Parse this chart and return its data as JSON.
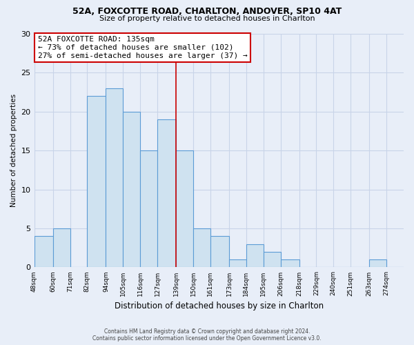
{
  "title1": "52A, FOXCOTTE ROAD, CHARLTON, ANDOVER, SP10 4AT",
  "title2": "Size of property relative to detached houses in Charlton",
  "xlabel": "Distribution of detached houses by size in Charlton",
  "ylabel": "Number of detached properties",
  "bin_labels": [
    "48sqm",
    "60sqm",
    "71sqm",
    "82sqm",
    "94sqm",
    "105sqm",
    "116sqm",
    "127sqm",
    "139sqm",
    "150sqm",
    "161sqm",
    "173sqm",
    "184sqm",
    "195sqm",
    "206sqm",
    "218sqm",
    "229sqm",
    "240sqm",
    "251sqm",
    "263sqm",
    "274sqm"
  ],
  "bin_edges": [
    48,
    60,
    71,
    82,
    94,
    105,
    116,
    127,
    139,
    150,
    161,
    173,
    184,
    195,
    206,
    218,
    229,
    240,
    251,
    263,
    274
  ],
  "counts": [
    4,
    5,
    0,
    22,
    23,
    20,
    15,
    19,
    15,
    5,
    4,
    1,
    3,
    2,
    1,
    0,
    0,
    0,
    0,
    1,
    0
  ],
  "bar_color": "#cfe2f0",
  "bar_edgecolor": "#5b9bd5",
  "vline_x": 139,
  "vline_color": "#cc0000",
  "annotation_box_text": "52A FOXCOTTE ROAD: 135sqm\n← 73% of detached houses are smaller (102)\n27% of semi-detached houses are larger (37) →",
  "annotation_box_edgecolor": "#cc0000",
  "annotation_box_facecolor": "#ffffff",
  "ylim": [
    0,
    30
  ],
  "yticks": [
    0,
    5,
    10,
    15,
    20,
    25,
    30
  ],
  "footer1": "Contains HM Land Registry data © Crown copyright and database right 2024.",
  "footer2": "Contains public sector information licensed under the Open Government Licence v3.0.",
  "bg_color": "#e8eef8",
  "grid_color": "#c8d4e8"
}
